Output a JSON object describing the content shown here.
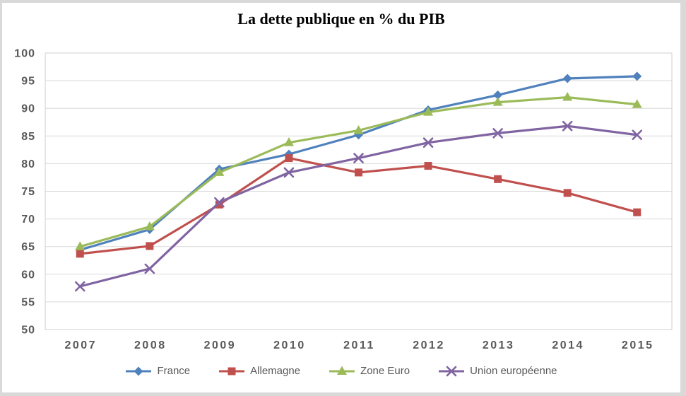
{
  "title": "La dette publique en % du PIB",
  "chart_data": {
    "type": "line",
    "title": "La dette publique en % du PIB",
    "categories": [
      "2007",
      "2008",
      "2009",
      "2010",
      "2011",
      "2012",
      "2013",
      "2014",
      "2015"
    ],
    "series": [
      {
        "name": "France",
        "color": "#4F81BD",
        "marker": "diamond",
        "values": [
          64.4,
          68.1,
          79.0,
          81.7,
          85.2,
          89.7,
          92.4,
          95.4,
          95.8
        ]
      },
      {
        "name": "Allemagne",
        "color": "#C0504D",
        "marker": "square",
        "values": [
          63.7,
          65.1,
          72.6,
          81.0,
          78.4,
          79.6,
          77.2,
          74.7,
          71.2
        ]
      },
      {
        "name": "Zone Euro",
        "color": "#9BBB59",
        "marker": "triangle",
        "values": [
          65.0,
          68.6,
          78.4,
          83.8,
          86.0,
          89.3,
          91.1,
          92.0,
          90.7
        ]
      },
      {
        "name": "Union européenne",
        "color": "#8064A2",
        "marker": "x",
        "values": [
          57.8,
          61.0,
          73.0,
          78.4,
          81.0,
          83.8,
          85.5,
          86.8,
          85.2
        ]
      }
    ],
    "xlabel": "",
    "ylabel": "",
    "ylim": [
      50,
      100
    ],
    "yticks": [
      50,
      55,
      60,
      65,
      70,
      75,
      80,
      85,
      90,
      95,
      100
    ],
    "grid": true,
    "legend_position": "bottom",
    "axis_label_color": "#595959",
    "gridline_color": "#d9d9d9"
  }
}
